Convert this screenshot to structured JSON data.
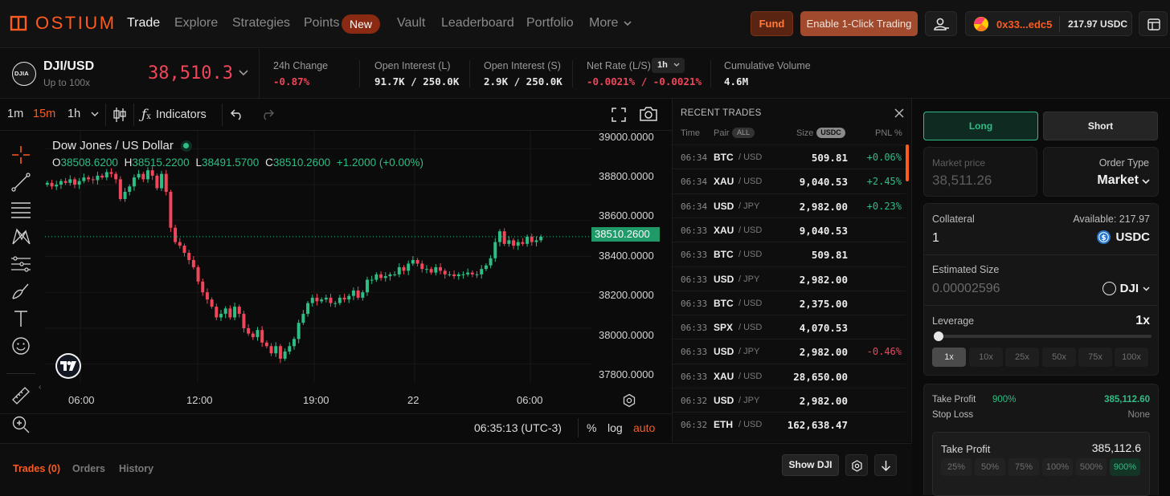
{
  "brand": {
    "name": "OSTIUM",
    "color": "#ff5a1f"
  },
  "nav": {
    "items": [
      "Trade",
      "Explore",
      "Strategies",
      "Points",
      "Vault",
      "Leaderboard",
      "Portfolio",
      "More"
    ],
    "new_badge": "New"
  },
  "header_actions": {
    "fund": "Fund",
    "one_click": "Enable 1-Click Trading",
    "wallet_address": "0x33...edc5",
    "wallet_balance": "217.97 USDC"
  },
  "market": {
    "pair": "DJI/USD",
    "leverage_hint": "Up to 100x",
    "price": "38,510.3",
    "icon_text": "DJIA",
    "stats": [
      {
        "label": "24h Change",
        "value": "-0.87%"
      },
      {
        "label": "Open Interest (L)",
        "value": "91.7K / 250.0K"
      },
      {
        "label": "Open Interest (S)",
        "value": "2.9K / 250.0K"
      },
      {
        "label": "Net Rate (L/S)",
        "value": "-0.0021% / -0.0021%",
        "period": "1h"
      },
      {
        "label": "Cumulative Volume",
        "value": "4.6M"
      }
    ]
  },
  "chart_toolbar": {
    "intervals": [
      "1m",
      "15m",
      "1h"
    ],
    "active_interval": "15m",
    "indicators": "Indicators"
  },
  "chart": {
    "title": "Dow Jones / US Dollar",
    "ohlc": {
      "o_label": "O",
      "o": "38508.6200",
      "h_label": "H",
      "h": "38515.2200",
      "l_label": "L",
      "l": "38491.5700",
      "c_label": "C",
      "c": "38510.2600",
      "change": "+1.2000 (+0.00%)"
    },
    "last_price_label": "38510.2600",
    "y_ticks": [
      "39000.0000",
      "38800.0000",
      "38600.0000",
      "38400.0000",
      "38200.0000",
      "38000.0000",
      "37800.0000"
    ],
    "x_ticks": [
      "06:00",
      "12:00",
      "19:00",
      "22",
      "06:00"
    ],
    "clock": "06:35:13 (UTC-3)",
    "scale_options": [
      "%",
      "log",
      "auto"
    ],
    "up_color": "#2ebd85",
    "down_color": "#f0465a"
  },
  "chart_data": {
    "type": "candlestick",
    "ylim": [
      37700,
      39100
    ],
    "series": [
      {
        "values": [
          38810,
          38790,
          38800,
          38820,
          38810,
          38830,
          38800,
          38820,
          38840,
          38830,
          38825,
          38850,
          38840,
          38870,
          38860,
          38830,
          38720,
          38760,
          38790,
          38840,
          38860,
          38830,
          38880,
          38850,
          38780,
          38860,
          38760,
          38560,
          38480,
          38460,
          38420,
          38380,
          38340,
          38260,
          38200,
          38160,
          38120,
          38060,
          38080,
          38110,
          38060,
          38120,
          38080,
          38000,
          37970,
          37950,
          37990,
          37920,
          37900,
          37860,
          37900,
          37830,
          37870,
          37900,
          37940,
          38030,
          38080,
          38140,
          38170,
          38150,
          38160,
          38170,
          38140,
          38140,
          38170,
          38160,
          38180,
          38210,
          38170,
          38200,
          38270,
          38270,
          38300,
          38280,
          38290,
          38300,
          38300,
          38340,
          38320,
          38360,
          38380,
          38360,
          38330,
          38330,
          38310,
          38340,
          38320,
          38300,
          38300,
          38290,
          38300,
          38300,
          38310,
          38300,
          38300,
          38330,
          38350,
          38390,
          38480,
          38540,
          38470,
          38490,
          38460,
          38480,
          38470,
          38510,
          38480,
          38490,
          38510
        ]
      }
    ]
  },
  "recent_trades": {
    "title": "RECENT TRADES",
    "columns": {
      "time": "Time",
      "pair": "Pair",
      "pair_filter": "ALL",
      "size": "Size",
      "size_unit": "USDC",
      "pnl": "PNL %"
    },
    "rows": [
      {
        "time": "06:34",
        "base": "BTC",
        "quote": "/ USD",
        "size": "509.81",
        "pnl": "+0.06%"
      },
      {
        "time": "06:34",
        "base": "XAU",
        "quote": "/ USD",
        "size": "9,040.53",
        "pnl": "+2.45%"
      },
      {
        "time": "06:34",
        "base": "USD",
        "quote": "/ JPY",
        "size": "2,982.00",
        "pnl": "+0.23%"
      },
      {
        "time": "06:33",
        "base": "XAU",
        "quote": "/ USD",
        "size": "9,040.53",
        "pnl": ""
      },
      {
        "time": "06:33",
        "base": "BTC",
        "quote": "/ USD",
        "size": "509.81",
        "pnl": ""
      },
      {
        "time": "06:33",
        "base": "USD",
        "quote": "/ JPY",
        "size": "2,982.00",
        "pnl": ""
      },
      {
        "time": "06:33",
        "base": "BTC",
        "quote": "/ USD",
        "size": "2,375.00",
        "pnl": ""
      },
      {
        "time": "06:33",
        "base": "SPX",
        "quote": "/ USD",
        "size": "4,070.53",
        "pnl": ""
      },
      {
        "time": "06:33",
        "base": "USD",
        "quote": "/ JPY",
        "size": "2,982.00",
        "pnl": "-0.46%"
      },
      {
        "time": "06:33",
        "base": "XAU",
        "quote": "/ USD",
        "size": "28,650.00",
        "pnl": ""
      },
      {
        "time": "06:32",
        "base": "USD",
        "quote": "/ JPY",
        "size": "2,982.00",
        "pnl": ""
      },
      {
        "time": "06:32",
        "base": "ETH",
        "quote": "/ USD",
        "size": "162,638.47",
        "pnl": ""
      }
    ]
  },
  "order": {
    "long": "Long",
    "short": "Short",
    "market_price_label": "Market price",
    "market_price_value": "38,511.26",
    "order_type_label": "Order Type",
    "order_type_value": "Market",
    "collateral_label": "Collateral",
    "collateral_available": "Available: 217.97",
    "collateral_value": "1",
    "collateral_token": "USDC",
    "est_size_label": "Estimated Size",
    "est_size_value": "0.00002596",
    "est_size_token": "DJI",
    "leverage_label": "Leverage",
    "leverage_value": "1x",
    "leverage_level": 0,
    "leverage_options": [
      "1x",
      "10x",
      "25x",
      "50x",
      "75x",
      "100x"
    ],
    "tp_label": "Take Profit",
    "tp_pct": "900%",
    "tp_value": "385,112.60",
    "sl_label": "Stop Loss",
    "sl_value": "None",
    "tp_box_label": "Take Profit",
    "tp_box_value": "385,112.6",
    "tp_options": [
      "25%",
      "50%",
      "75%",
      "100%",
      "500%",
      "900%"
    ]
  },
  "bottom": {
    "tabs": [
      "Trades (0)",
      "Orders",
      "History"
    ],
    "show_button": "Show DJI"
  }
}
